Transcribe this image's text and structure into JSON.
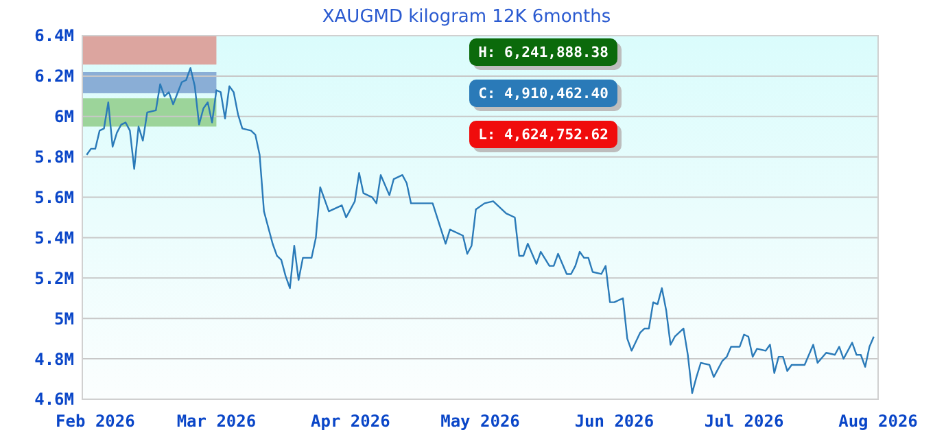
{
  "chart_data": {
    "type": "line",
    "title": "XAUGMD kilogram 12K 6months",
    "x": [
      "2026-01-30",
      "2026-01-31",
      "2026-02-01",
      "2026-02-02",
      "2026-02-03",
      "2026-02-04",
      "2026-02-05",
      "2026-02-06",
      "2026-02-07",
      "2026-02-08",
      "2026-02-09",
      "2026-02-10",
      "2026-02-11",
      "2026-02-12",
      "2026-02-13",
      "2026-02-15",
      "2026-02-16",
      "2026-02-17",
      "2026-02-18",
      "2026-02-19",
      "2026-02-21",
      "2026-02-22",
      "2026-02-23",
      "2026-02-24",
      "2026-02-25",
      "2026-02-26",
      "2026-02-27",
      "2026-02-28",
      "2026-03-01",
      "2026-03-02",
      "2026-03-03",
      "2026-03-04",
      "2026-03-05",
      "2026-03-06",
      "2026-03-07",
      "2026-03-09",
      "2026-03-10",
      "2026-03-11",
      "2026-03-12",
      "2026-03-14",
      "2026-03-15",
      "2026-03-16",
      "2026-03-17",
      "2026-03-18",
      "2026-03-19",
      "2026-03-20",
      "2026-03-21",
      "2026-03-23",
      "2026-03-24",
      "2026-03-25",
      "2026-03-27",
      "2026-03-30",
      "2026-03-31",
      "2026-04-02",
      "2026-04-03",
      "2026-04-04",
      "2026-04-06",
      "2026-04-07",
      "2026-04-08",
      "2026-04-10",
      "2026-04-11",
      "2026-04-13",
      "2026-04-14",
      "2026-04-15",
      "2026-04-20",
      "2026-04-23",
      "2026-04-24",
      "2026-04-27",
      "2026-04-28",
      "2026-04-29",
      "2026-04-30",
      "2026-05-02",
      "2026-05-04",
      "2026-05-07",
      "2026-05-09",
      "2026-05-10",
      "2026-05-11",
      "2026-05-12",
      "2026-05-14",
      "2026-05-15",
      "2026-05-17",
      "2026-05-18",
      "2026-05-19",
      "2026-05-21",
      "2026-05-22",
      "2026-05-23",
      "2026-05-24",
      "2026-05-25",
      "2026-05-26",
      "2026-05-27",
      "2026-05-29",
      "2026-05-30",
      "2026-05-31",
      "2026-06-01",
      "2026-06-03",
      "2026-06-04",
      "2026-06-05",
      "2026-06-07",
      "2026-06-08",
      "2026-06-09",
      "2026-06-10",
      "2026-06-11",
      "2026-06-12",
      "2026-06-13",
      "2026-06-14",
      "2026-06-15",
      "2026-06-17",
      "2026-06-18",
      "2026-06-19",
      "2026-06-20",
      "2026-06-21",
      "2026-06-23",
      "2026-06-24",
      "2026-06-26",
      "2026-06-27",
      "2026-06-28",
      "2026-06-30",
      "2026-07-01",
      "2026-07-02",
      "2026-07-03",
      "2026-07-04",
      "2026-07-06",
      "2026-07-07",
      "2026-07-08",
      "2026-07-09",
      "2026-07-10",
      "2026-07-11",
      "2026-07-12",
      "2026-07-15",
      "2026-07-17",
      "2026-07-18",
      "2026-07-20",
      "2026-07-22",
      "2026-07-23",
      "2026-07-24",
      "2026-07-26",
      "2026-07-27",
      "2026-07-28",
      "2026-07-29",
      "2026-07-30",
      "2026-07-31"
    ],
    "series": [
      {
        "color": "#2a7ab8",
        "values": [
          5.81,
          5.84,
          5.84,
          5.93,
          5.94,
          6.07,
          5.85,
          5.92,
          5.96,
          5.97,
          5.93,
          5.74,
          5.95,
          5.88,
          6.02,
          6.03,
          6.16,
          6.1,
          6.12,
          6.06,
          6.17,
          6.18,
          6.24,
          6.15,
          5.96,
          6.04,
          6.07,
          5.97,
          6.13,
          6.12,
          5.99,
          6.15,
          6.12,
          6.01,
          5.94,
          5.93,
          5.91,
          5.81,
          5.53,
          5.37,
          5.31,
          5.29,
          5.21,
          5.15,
          5.36,
          5.19,
          5.3,
          5.3,
          5.4,
          5.65,
          5.53,
          5.56,
          5.5,
          5.58,
          5.72,
          5.62,
          5.6,
          5.57,
          5.71,
          5.61,
          5.69,
          5.71,
          5.67,
          5.57,
          5.57,
          5.37,
          5.44,
          5.41,
          5.32,
          5.36,
          5.54,
          5.57,
          5.58,
          5.52,
          5.5,
          5.31,
          5.31,
          5.37,
          5.27,
          5.33,
          5.26,
          5.26,
          5.32,
          5.22,
          5.22,
          5.26,
          5.33,
          5.3,
          5.3,
          5.23,
          5.22,
          5.26,
          5.08,
          5.08,
          5.1,
          4.9,
          4.84,
          4.93,
          4.95,
          4.95,
          5.08,
          5.07,
          5.15,
          5.04,
          4.87,
          4.91,
          4.95,
          4.82,
          4.63,
          4.71,
          4.78,
          4.77,
          4.71,
          4.79,
          4.81,
          4.86,
          4.86,
          4.92,
          4.91,
          4.81,
          4.85,
          4.84,
          4.87,
          4.73,
          4.81,
          4.81,
          4.74,
          4.77,
          4.77,
          4.87,
          4.78,
          4.83,
          4.82,
          4.86,
          4.8,
          4.88,
          4.82,
          4.82,
          4.76,
          4.86,
          4.91
        ]
      }
    ],
    "xlim": [
      "2026-01-29",
      "2026-08-01"
    ],
    "xticks": [
      {
        "value": "2026-02-01",
        "label": "Feb 2026"
      },
      {
        "value": "2026-03-01",
        "label": "Mar 2026"
      },
      {
        "value": "2026-04-01",
        "label": "Apr 2026"
      },
      {
        "value": "2026-05-01",
        "label": "May 2026"
      },
      {
        "value": "2026-06-01",
        "label": "Jun 2026"
      },
      {
        "value": "2026-07-01",
        "label": "Jul 2026"
      },
      {
        "value": "2026-08-01",
        "label": "Aug 2026"
      }
    ],
    "ylim": [
      4.6,
      6.4
    ],
    "yticks": [
      {
        "value": 4.6,
        "label": "4.6M"
      },
      {
        "value": 4.8,
        "label": "4.8M"
      },
      {
        "value": 5,
        "label": "5M"
      },
      {
        "value": 5.2,
        "label": "5.2M"
      },
      {
        "value": 5.4,
        "label": "5.4M"
      },
      {
        "value": 5.6,
        "label": "5.6M"
      },
      {
        "value": 5.8,
        "label": "5.8M"
      },
      {
        "value": 6,
        "label": "6M"
      },
      {
        "value": 6.2,
        "label": "6.2M"
      },
      {
        "value": 6.4,
        "label": "6.4M"
      }
    ],
    "grid": "y",
    "bands": [
      {
        "axis": "y",
        "from": 6.257,
        "to": 6.4,
        "color": "#dca59f"
      },
      {
        "axis": "y",
        "from": 6.115,
        "to": 6.22,
        "color": "#8aaed6"
      },
      {
        "axis": "y",
        "from": 5.95,
        "to": 6.09,
        "color": "#9cd49a"
      }
    ],
    "annotations": [
      "H: 6,241,888.38",
      "C: 4,910,462.40",
      "L: 4,624,752.62"
    ]
  }
}
